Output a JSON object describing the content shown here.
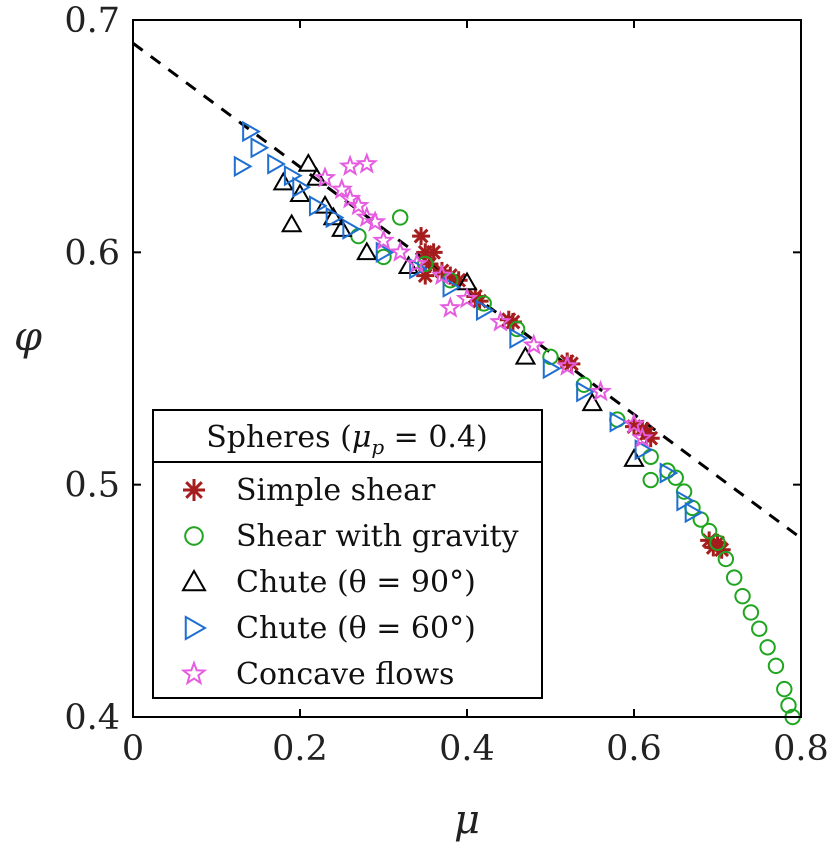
{
  "chart_data": {
    "type": "scatter",
    "title": "",
    "xlabel": "μ",
    "ylabel": "φ",
    "xlim": [
      0,
      0.8
    ],
    "ylim": [
      0.4,
      0.7
    ],
    "xticks": [
      "0",
      "0.2",
      "0.4",
      "0.6",
      "0.8"
    ],
    "yticks": [
      "0.4",
      "0.5",
      "0.6",
      "0.7"
    ],
    "legend_title": "Spheres (μp = 0.4)",
    "legend_placement": "lower-left",
    "fit_line": {
      "name": "",
      "x": [
        0,
        0.8
      ],
      "y": [
        0.69,
        0.477
      ],
      "style": "dashed",
      "color": "#000000"
    },
    "series": [
      {
        "name": "Simple shear",
        "marker": "asterisk",
        "color": "#a51d1d",
        "x": [
          0.345,
          0.35,
          0.355,
          0.36,
          0.35,
          0.37,
          0.38,
          0.39,
          0.41,
          0.415,
          0.45,
          0.455,
          0.52,
          0.525,
          0.6,
          0.61,
          0.615,
          0.62,
          0.69,
          0.695,
          0.7,
          0.705
        ],
        "y": [
          0.607,
          0.6,
          0.595,
          0.6,
          0.59,
          0.592,
          0.59,
          0.588,
          0.581,
          0.579,
          0.571,
          0.57,
          0.553,
          0.552,
          0.525,
          0.524,
          0.522,
          0.52,
          0.476,
          0.473,
          0.475,
          0.472
        ]
      },
      {
        "name": "Shear with gravity",
        "marker": "circle",
        "color": "#1fa51f",
        "x": [
          0.27,
          0.3,
          0.32,
          0.35,
          0.38,
          0.42,
          0.46,
          0.5,
          0.54,
          0.58,
          0.62,
          0.64,
          0.65,
          0.66,
          0.67,
          0.68,
          0.69,
          0.7,
          0.71,
          0.72,
          0.73,
          0.74,
          0.75,
          0.76,
          0.77,
          0.78,
          0.785,
          0.79,
          0.62
        ],
        "y": [
          0.607,
          0.598,
          0.615,
          0.595,
          0.588,
          0.578,
          0.567,
          0.555,
          0.543,
          0.528,
          0.512,
          0.506,
          0.503,
          0.497,
          0.49,
          0.485,
          0.48,
          0.475,
          0.468,
          0.46,
          0.452,
          0.445,
          0.438,
          0.43,
          0.422,
          0.412,
          0.405,
          0.4,
          0.502
        ]
      },
      {
        "name": "Chute (θ = 90°)",
        "marker": "triangle-up",
        "color": "#000000",
        "x": [
          0.18,
          0.2,
          0.22,
          0.23,
          0.24,
          0.21,
          0.19,
          0.25,
          0.28,
          0.33,
          0.4,
          0.47,
          0.55,
          0.6
        ],
        "y": [
          0.63,
          0.625,
          0.632,
          0.62,
          0.615,
          0.638,
          0.612,
          0.61,
          0.6,
          0.594,
          0.587,
          0.555,
          0.535,
          0.511
        ]
      },
      {
        "name": "Chute (θ = 60°)",
        "marker": "triangle-right",
        "color": "#1f6fd1",
        "x": [
          0.14,
          0.15,
          0.17,
          0.19,
          0.2,
          0.22,
          0.24,
          0.26,
          0.3,
          0.34,
          0.38,
          0.42,
          0.46,
          0.5,
          0.54,
          0.58,
          0.61,
          0.64,
          0.66,
          0.67,
          0.13
        ],
        "y": [
          0.652,
          0.645,
          0.638,
          0.633,
          0.628,
          0.62,
          0.615,
          0.61,
          0.6,
          0.593,
          0.585,
          0.575,
          0.563,
          0.55,
          0.54,
          0.527,
          0.515,
          0.505,
          0.493,
          0.488,
          0.637
        ]
      },
      {
        "name": "Concave flows",
        "marker": "star",
        "color": "#e55ce0",
        "x": [
          0.23,
          0.25,
          0.26,
          0.27,
          0.28,
          0.29,
          0.3,
          0.32,
          0.34,
          0.37,
          0.4,
          0.44,
          0.48,
          0.52,
          0.56,
          0.6,
          0.61,
          0.26,
          0.28,
          0.38
        ],
        "y": [
          0.632,
          0.627,
          0.623,
          0.62,
          0.615,
          0.613,
          0.605,
          0.6,
          0.595,
          0.59,
          0.58,
          0.57,
          0.56,
          0.551,
          0.54,
          0.526,
          0.52,
          0.637,
          0.638,
          0.576
        ]
      }
    ]
  }
}
